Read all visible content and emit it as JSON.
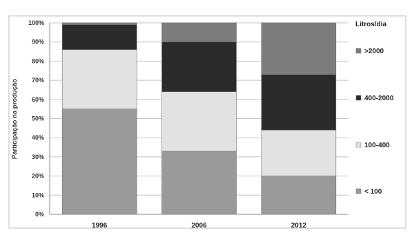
{
  "chart_data": {
    "type": "bar",
    "stacked": true,
    "orientation": "vertical",
    "categories": [
      "1996",
      "2006",
      "2012"
    ],
    "series": [
      {
        "name": "< 100",
        "values": [
          55,
          33,
          20
        ],
        "color": "#9a9a9a"
      },
      {
        "name": "100-400",
        "values": [
          31,
          31,
          24
        ],
        "color": "#e2e2e2"
      },
      {
        "name": "400-2000",
        "values": [
          13,
          26,
          29
        ],
        "color": "#2b2b2b"
      },
      {
        "name": ">2000",
        "values": [
          1,
          10,
          27
        ],
        "color": "#7c7c7c"
      }
    ],
    "ylabel": "Participação na produção",
    "legend_title": "Litros/dia",
    "legend_position": "right",
    "ylim": [
      0,
      100
    ],
    "yticks": [
      "0%",
      "10%",
      "20%",
      "30%",
      "40%",
      "50%",
      "60%",
      "70%",
      "80%",
      "90%",
      "100%"
    ],
    "grid": true
  }
}
